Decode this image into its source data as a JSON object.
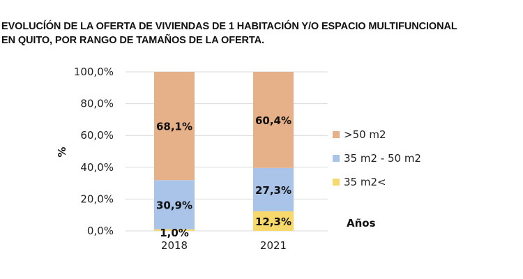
{
  "chart_data": {
    "type": "bar",
    "stacked": true,
    "title_lines": [
      "EVOLUCÍÓN DE LA OFERTA DE VIVIENDAS DE 1 HABITACIÓN Y/O ESPACIO MULTIFUNCIONAL",
      "EN QUITO, POR RANGO DE TAMAÑOS DE LA OFERTA."
    ],
    "categories": [
      "2018",
      "2021"
    ],
    "series": [
      {
        "name": "35 m2<",
        "values": [
          1.0,
          12.3
        ],
        "labels": [
          "1,0%",
          "12,3%"
        ],
        "color": "#f6d86b"
      },
      {
        "name": "35 m2 - 50 m2",
        "values": [
          30.9,
          27.3
        ],
        "labels": [
          "30,9%",
          "27,3%"
        ],
        "color": "#a9c4e8"
      },
      {
        "name": ">50 m2",
        "values": [
          68.1,
          60.4
        ],
        "labels": [
          "68,1%",
          "60,4%"
        ],
        "color": "#e6b088"
      }
    ],
    "ylabel": "%",
    "xlabel": "Años",
    "ylim": [
      0,
      100
    ],
    "yticks": [
      0,
      20,
      40,
      60,
      80,
      100
    ],
    "ytick_labels": [
      "0,0%",
      "20,0%",
      "40,0%",
      "60,0%",
      "80,0%",
      "100,0%"
    ],
    "legend": {
      "position": "right",
      "order": [
        ">50 m2",
        "35 m2 - 50 m2",
        "35 m2<"
      ]
    },
    "grid": true
  }
}
